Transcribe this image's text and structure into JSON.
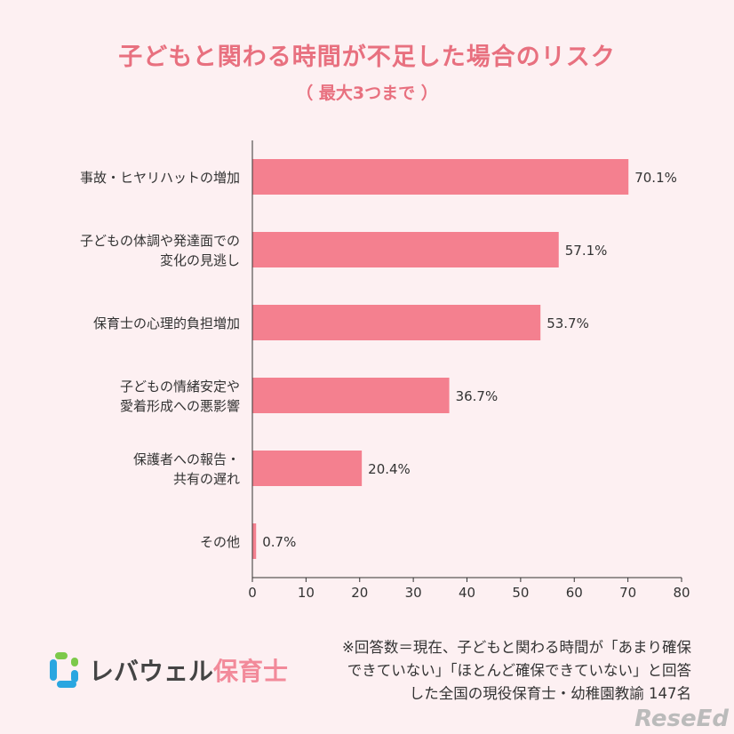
{
  "chart_data": {
    "type": "bar",
    "orientation": "horizontal",
    "title": "子どもと関わる時間が不足した場合のリスク",
    "subtitle": "（ 最大3つまで ）",
    "categories": [
      [
        "事故・ヒヤリハットの増加"
      ],
      [
        "子どもの体調や発達面での",
        "変化の見逃し"
      ],
      [
        "保育士の心理的負担増加"
      ],
      [
        "子どもの情緒安定や",
        "愛着形成への悪影響"
      ],
      [
        "保護者への報告・",
        "共有の遅れ"
      ],
      [
        "その他"
      ]
    ],
    "values": [
      70.1,
      57.1,
      53.7,
      36.7,
      20.4,
      0.7
    ],
    "value_labels": [
      "70.1%",
      "57.1%",
      "53.7%",
      "36.7%",
      "20.4%",
      "0.7%"
    ],
    "xlim": [
      0,
      80
    ],
    "xticks": [
      0,
      10,
      20,
      30,
      40,
      50,
      60,
      70,
      80
    ],
    "grid": false,
    "bar_color": "#f4808f"
  },
  "note": [
    "※回答数＝現在、子どもと関わる時間が「あまり確保",
    "できていない」「ほとんど確保できていない」と回答",
    "した全国の現役保育士・幼稚園教諭 147名"
  ],
  "logo": {
    "part1": "レバウェル",
    "part2": "保育士"
  },
  "watermark": "ReseEd"
}
